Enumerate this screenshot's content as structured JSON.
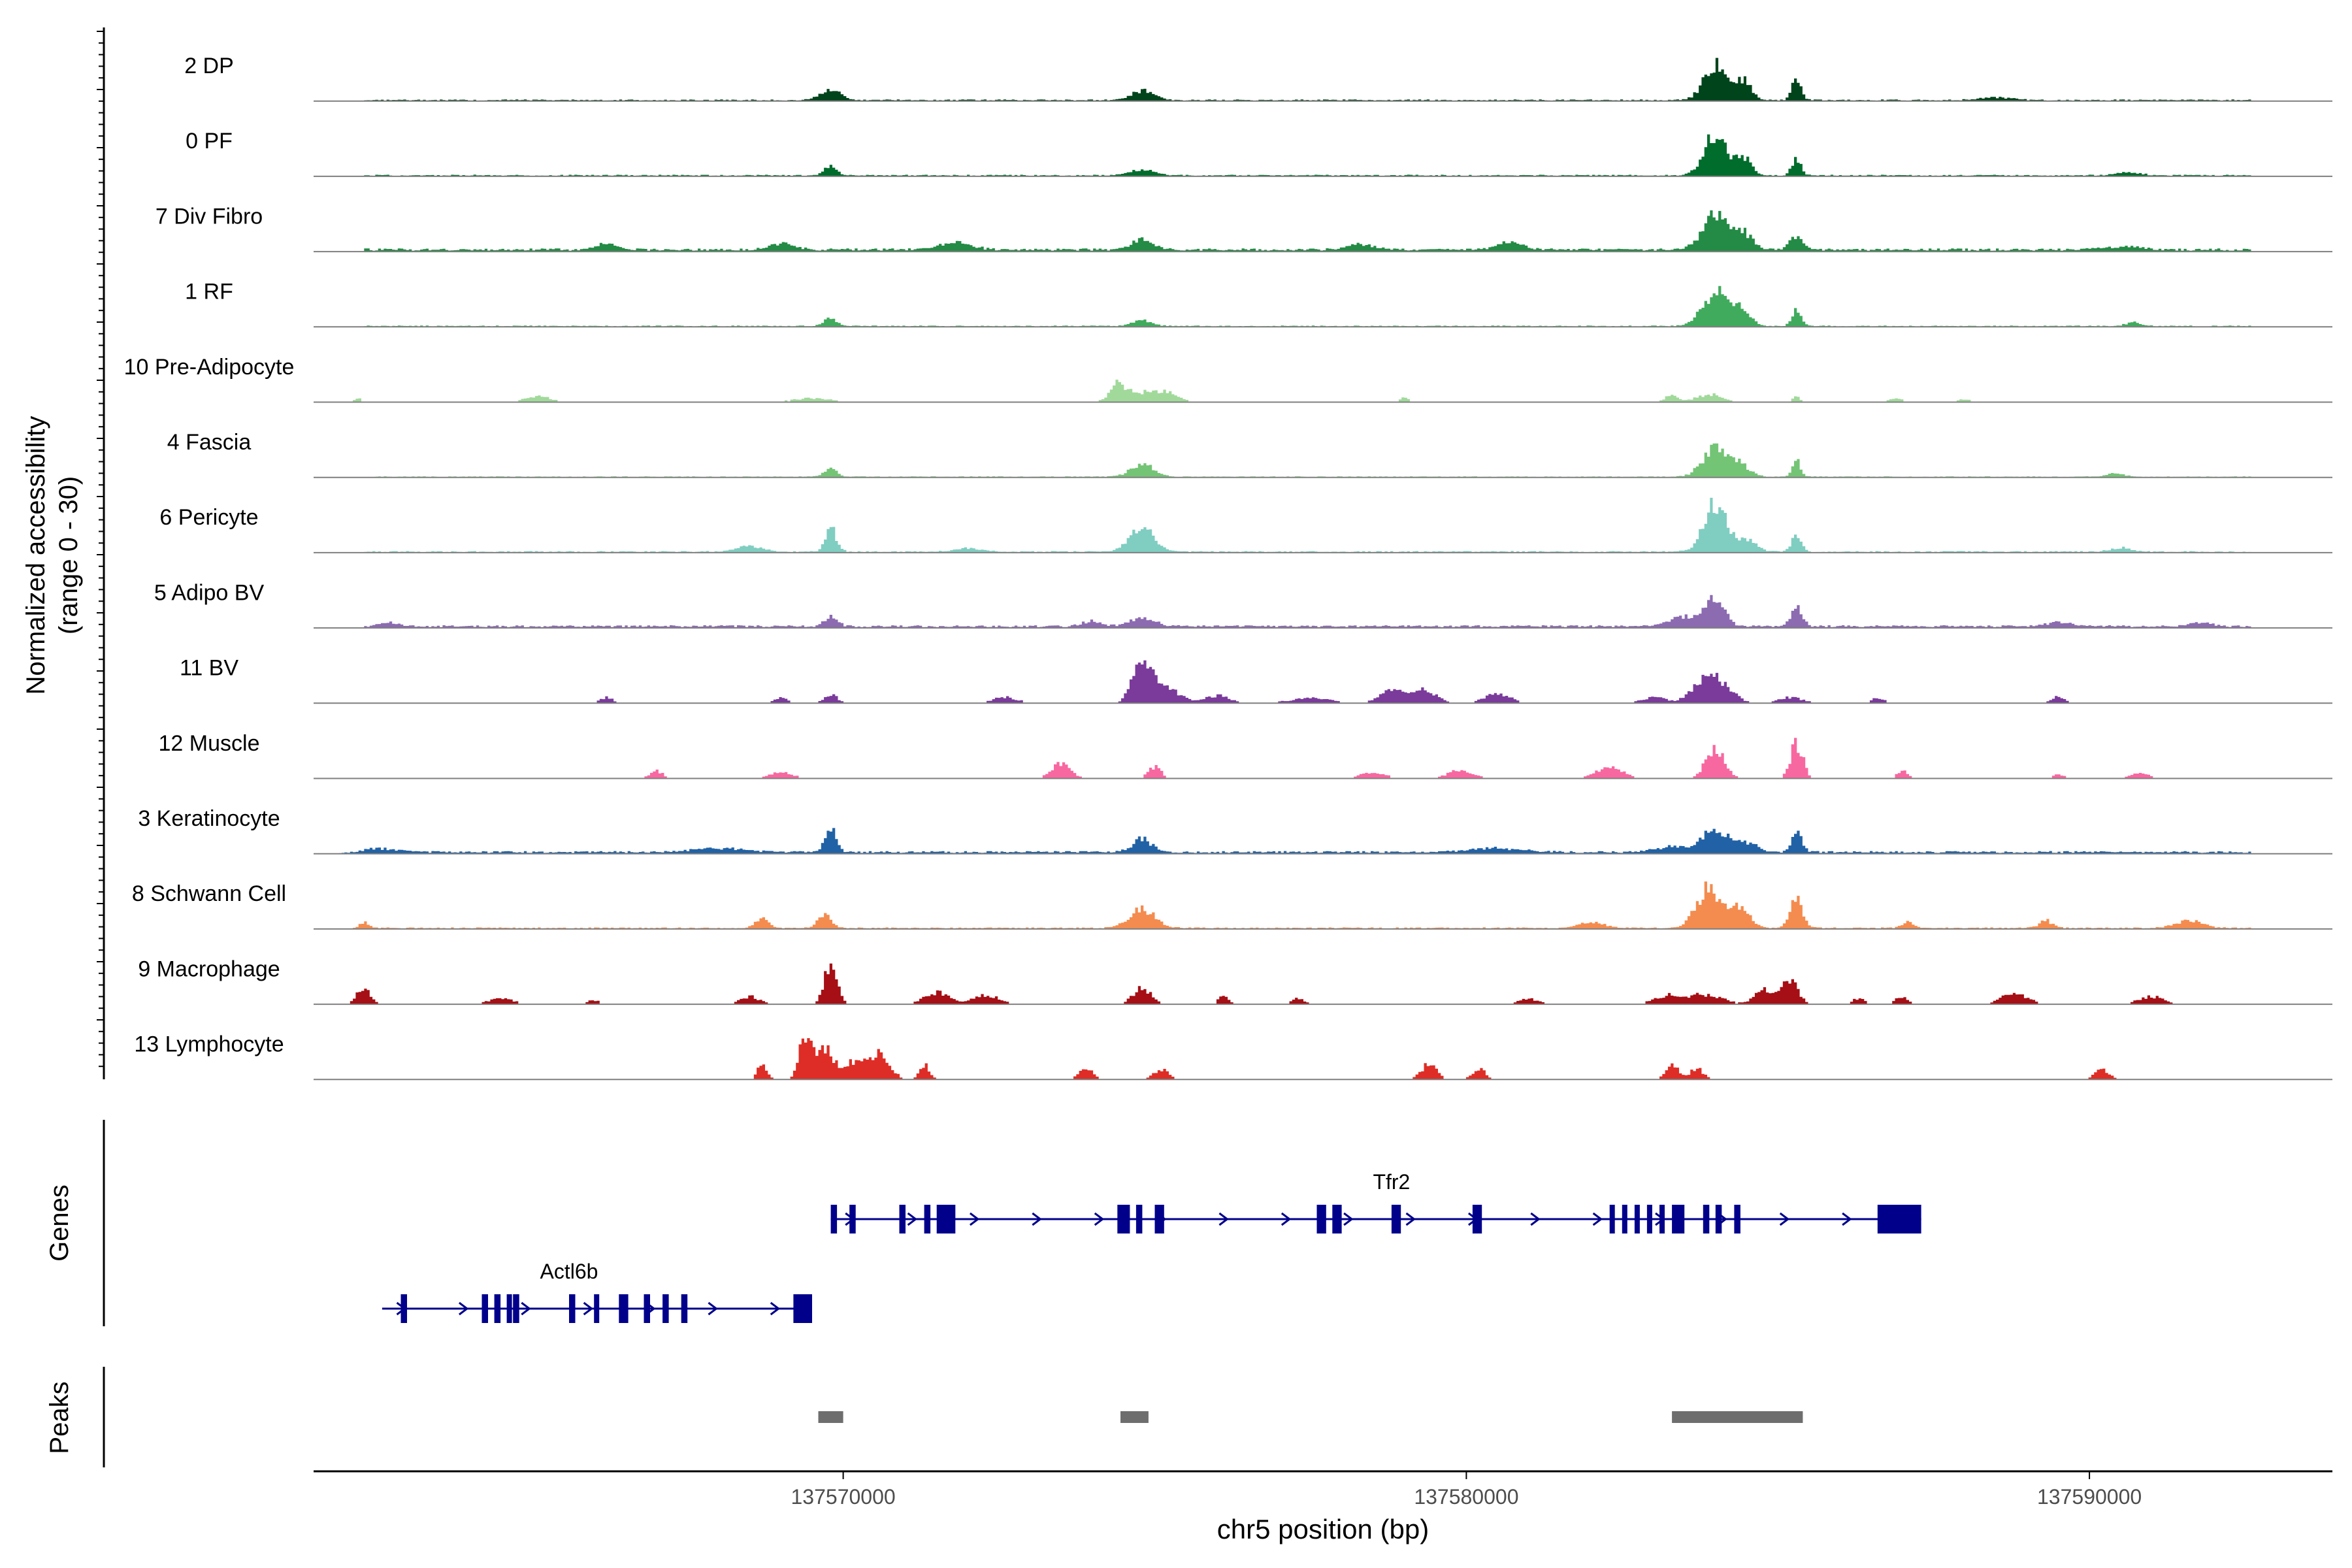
{
  "chart_data": {
    "type": "area",
    "title": "",
    "ylabel": "Normalized accessibility (range 0 - 30)",
    "ylabel_line1": "Normalized accessibility",
    "ylabel_line2": "(range 0 - 30)",
    "y_range": [
      0,
      30
    ],
    "xlabel": "chr5 position (bp)",
    "x_range": [
      137561500,
      137593900
    ],
    "x_ticks": [
      137570000,
      137580000,
      137590000
    ],
    "x_tick_labels": [
      "137570000",
      "137580000",
      "137590000"
    ],
    "panel_labels": {
      "genes": "Genes",
      "peaks": "Peaks"
    },
    "tracks": [
      {
        "name": "2 DP",
        "color": "#00441b",
        "scale": 1.0,
        "baseline": 0.6,
        "sparse": false,
        "peaks": [
          [
            137584000,
            18,
            180
          ],
          [
            137584450,
            10,
            120
          ],
          [
            137585300,
            12,
            70
          ],
          [
            137569800,
            6,
            150
          ],
          [
            137574800,
            5,
            180
          ],
          [
            137588500,
            1.5,
            250
          ]
        ]
      },
      {
        "name": "0 PF",
        "color": "#006d2c",
        "scale": 1.0,
        "baseline": 0.6,
        "sparse": false,
        "peaks": [
          [
            137584000,
            22,
            180
          ],
          [
            137584450,
            9,
            120
          ],
          [
            137585300,
            9,
            70
          ],
          [
            137569800,
            5,
            100
          ],
          [
            137574800,
            3,
            200
          ],
          [
            137590600,
            1.5,
            200
          ]
        ]
      },
      {
        "name": "7 Div Fibro",
        "color": "#238b45",
        "scale": 1.0,
        "baseline": 1.2,
        "sparse": false,
        "peaks": [
          [
            137584000,
            18,
            200
          ],
          [
            137584450,
            8,
            150
          ],
          [
            137585300,
            7,
            100
          ],
          [
            137574800,
            6,
            150
          ],
          [
            137571800,
            4,
            250
          ],
          [
            137578300,
            3,
            200
          ],
          [
            137580700,
            4,
            200
          ],
          [
            137566200,
            3,
            150
          ],
          [
            137569000,
            3,
            200
          ],
          [
            137590500,
            1.5,
            300
          ]
        ]
      },
      {
        "name": "1 RF",
        "color": "#41ab5d",
        "scale": 1.0,
        "baseline": 0.5,
        "sparse": false,
        "peaks": [
          [
            137584000,
            18,
            200
          ],
          [
            137584400,
            8,
            150
          ],
          [
            137585300,
            9,
            70
          ],
          [
            137569800,
            4,
            100
          ],
          [
            137574800,
            3,
            150
          ],
          [
            137590700,
            2,
            120
          ]
        ]
      },
      {
        "name": "10 Pre-Adipocyte",
        "color": "#a1d99b",
        "scale": 1.0,
        "baseline": 0.0,
        "sparse": true,
        "peaks": [
          [
            137574400,
            8,
            100
          ],
          [
            137574700,
            5,
            300
          ],
          [
            137575200,
            4,
            200
          ],
          [
            137565100,
            3,
            200
          ],
          [
            137579000,
            3,
            60
          ],
          [
            137583300,
            4,
            100
          ],
          [
            137583900,
            4,
            200
          ],
          [
            137585300,
            3,
            60
          ],
          [
            137562200,
            2,
            60
          ],
          [
            137569500,
            2,
            300
          ],
          [
            137586900,
            2,
            100
          ],
          [
            137588000,
            1.5,
            100
          ]
        ]
      },
      {
        "name": "4 Fascia",
        "color": "#74c476",
        "scale": 1.0,
        "baseline": 0.4,
        "sparse": false,
        "peaks": [
          [
            137584000,
            15,
            200
          ],
          [
            137584400,
            6,
            150
          ],
          [
            137585300,
            8,
            70
          ],
          [
            137574800,
            7,
            180
          ],
          [
            137569800,
            4,
            100
          ],
          [
            137590400,
            1.5,
            150
          ]
        ]
      },
      {
        "name": "6 Pericyte",
        "color": "#80cdc1",
        "scale": 1.0,
        "baseline": 0.6,
        "sparse": false,
        "peaks": [
          [
            137584000,
            25,
            180
          ],
          [
            137584500,
            6,
            150
          ],
          [
            137585300,
            8,
            80
          ],
          [
            137574800,
            12,
            200
          ],
          [
            137569800,
            12,
            90
          ],
          [
            137568500,
            3,
            200
          ],
          [
            137572000,
            2,
            200
          ],
          [
            137590500,
            2,
            150
          ]
        ]
      },
      {
        "name": "5 Adipo BV",
        "color": "#8c6bb1",
        "scale": 1.0,
        "baseline": 1.0,
        "sparse": false,
        "peaks": [
          [
            137584000,
            14,
            150
          ],
          [
            137585300,
            10,
            90
          ],
          [
            137583500,
            5,
            250
          ],
          [
            137569800,
            5,
            100
          ],
          [
            137574800,
            4,
            200
          ],
          [
            137574000,
            3,
            150
          ],
          [
            137562700,
            2,
            150
          ],
          [
            137589500,
            2,
            200
          ],
          [
            137591800,
            2,
            150
          ]
        ]
      },
      {
        "name": "11 BV",
        "color": "#7a3b9b",
        "scale": 1.0,
        "baseline": 0.0,
        "sparse": true,
        "peaks": [
          [
            137574800,
            22,
            150
          ],
          [
            137575200,
            8,
            200
          ],
          [
            137576000,
            4,
            200
          ],
          [
            137578800,
            6,
            200
          ],
          [
            137579300,
            7,
            200
          ],
          [
            137580500,
            5,
            200
          ],
          [
            137583800,
            10,
            200
          ],
          [
            137584100,
            8,
            200
          ],
          [
            137583000,
            3,
            200
          ],
          [
            137569800,
            5,
            100
          ],
          [
            137566200,
            3,
            100
          ],
          [
            137569000,
            3,
            100
          ],
          [
            137572600,
            3,
            200
          ],
          [
            137577500,
            3,
            300
          ],
          [
            137586600,
            3,
            100
          ],
          [
            137589500,
            4,
            100
          ],
          [
            137585200,
            3,
            200
          ]
        ]
      },
      {
        "name": "12 Muscle",
        "color": "#f768a1",
        "scale": 1.0,
        "baseline": 0.0,
        "sparse": true,
        "peaks": [
          [
            137584000,
            16,
            150
          ],
          [
            137585300,
            18,
            100
          ],
          [
            137582300,
            6,
            200
          ],
          [
            137573500,
            8,
            150
          ],
          [
            137575000,
            6,
            100
          ],
          [
            137578500,
            3,
            200
          ],
          [
            137579900,
            4,
            200
          ],
          [
            137567000,
            4,
            100
          ],
          [
            137569000,
            3,
            200
          ],
          [
            137587000,
            4,
            80
          ],
          [
            137589500,
            2,
            100
          ],
          [
            137590800,
            3,
            150
          ]
        ]
      },
      {
        "name": "3 Keratinocyte",
        "color": "#2162a6",
        "scale": 1.0,
        "baseline": 1.0,
        "sparse": false,
        "peaks": [
          [
            137584000,
            12,
            200
          ],
          [
            137584500,
            5,
            150
          ],
          [
            137585300,
            10,
            80
          ],
          [
            137569800,
            13,
            90
          ],
          [
            137574800,
            7,
            150
          ],
          [
            137583300,
            3,
            250
          ],
          [
            137562500,
            2,
            300
          ],
          [
            137580500,
            2,
            400
          ],
          [
            137568000,
            2,
            400
          ]
        ]
      },
      {
        "name": "8 Schwann Cell",
        "color": "#f48c4f",
        "scale": 1.0,
        "baseline": 0.6,
        "sparse": false,
        "peaks": [
          [
            137583900,
            20,
            200
          ],
          [
            137584400,
            10,
            150
          ],
          [
            137585300,
            15,
            100
          ],
          [
            137574800,
            10,
            200
          ],
          [
            137569700,
            7,
            100
          ],
          [
            137568700,
            5,
            100
          ],
          [
            137562300,
            3,
            80
          ],
          [
            137582000,
            3,
            200
          ],
          [
            137587100,
            3,
            100
          ],
          [
            137589300,
            4,
            100
          ],
          [
            137591600,
            4,
            200
          ]
        ]
      },
      {
        "name": "9 Macrophage",
        "color": "#a50f15",
        "scale": 1.0,
        "baseline": 0.0,
        "sparse": true,
        "peaks": [
          [
            137569800,
            22,
            100
          ],
          [
            137562300,
            9,
            100
          ],
          [
            137574800,
            8,
            150
          ],
          [
            137585200,
            14,
            120
          ],
          [
            137584800,
            8,
            150
          ],
          [
            137571500,
            6,
            200
          ],
          [
            137572300,
            5,
            200
          ],
          [
            137576100,
            4,
            80
          ],
          [
            137577300,
            3,
            100
          ],
          [
            137581000,
            3,
            150
          ],
          [
            137583200,
            4,
            200
          ],
          [
            137583800,
            5,
            300
          ],
          [
            137586300,
            3,
            100
          ],
          [
            137587000,
            4,
            100
          ],
          [
            137588800,
            6,
            200
          ],
          [
            137591000,
            4,
            200
          ],
          [
            137564500,
            3,
            200
          ],
          [
            137568500,
            4,
            150
          ],
          [
            137566000,
            2,
            100
          ]
        ]
      },
      {
        "name": "13 Lymphocyte",
        "color": "#de2d26",
        "scale": 1.0,
        "baseline": 0.0,
        "sparse": true,
        "peaks": [
          [
            137569400,
            22,
            100
          ],
          [
            137569700,
            16,
            150
          ],
          [
            137570200,
            10,
            150
          ],
          [
            137570600,
            14,
            150
          ],
          [
            137568700,
            8,
            80
          ],
          [
            137571300,
            8,
            80
          ],
          [
            137573900,
            5,
            120
          ],
          [
            137575100,
            5,
            120
          ],
          [
            137579400,
            8,
            120
          ],
          [
            137580200,
            6,
            100
          ],
          [
            137583300,
            8,
            100
          ],
          [
            137583700,
            6,
            100
          ],
          [
            137590200,
            5,
            120
          ]
        ]
      }
    ],
    "genes": [
      {
        "name": "Tfr2",
        "strand": "+",
        "start": 137569800,
        "end": 137587300,
        "row": 0,
        "label_pos": 137578800,
        "exons": [
          [
            137569800,
            137569900
          ],
          [
            137570100,
            137570200
          ],
          [
            137570900,
            137571000
          ],
          [
            137571300,
            137571400
          ],
          [
            137571500,
            137571800
          ],
          [
            137574400,
            137574600
          ],
          [
            137574700,
            137574800
          ],
          [
            137575000,
            137575150
          ],
          [
            137577600,
            137577750
          ],
          [
            137577850,
            137578000
          ],
          [
            137578800,
            137578950
          ],
          [
            137580100,
            137580250
          ],
          [
            137582300,
            137582350
          ],
          [
            137582500,
            137582550
          ],
          [
            137582700,
            137582750
          ],
          [
            137582900,
            137582950
          ],
          [
            137583100,
            137583150
          ],
          [
            137583300,
            137583500
          ],
          [
            137583800,
            137583900
          ],
          [
            137584000,
            137584100
          ],
          [
            137584300,
            137584400
          ],
          [
            137586600,
            137587300
          ]
        ]
      },
      {
        "name": "Actl6b",
        "strand": "+",
        "start": 137562600,
        "end": 137569500,
        "row": 1,
        "label_pos": 137565600,
        "exons": [
          [
            137562900,
            137563000
          ],
          [
            137564200,
            137564300
          ],
          [
            137564400,
            137564500
          ],
          [
            137564600,
            137564650
          ],
          [
            137564700,
            137564800
          ],
          [
            137565600,
            137565700
          ],
          [
            137566000,
            137566050
          ],
          [
            137566400,
            137566550
          ],
          [
            137566800,
            137566900
          ],
          [
            137567100,
            137567200
          ],
          [
            137567400,
            137567500
          ],
          [
            137569200,
            137569500
          ]
        ]
      }
    ],
    "peaks": [
      [
        137569600,
        137570000
      ],
      [
        137574450,
        137574900
      ],
      [
        137583300,
        137585400
      ]
    ]
  }
}
